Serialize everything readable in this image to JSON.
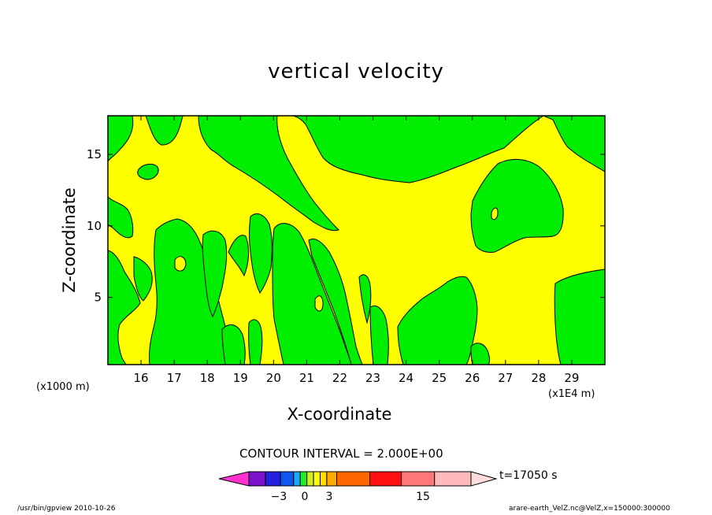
{
  "chart_data": {
    "type": "heatmap",
    "title": "vertical velocity",
    "xlabel": "X-coordinate",
    "ylabel": "Z-coordinate",
    "x_unit_note": "(x1000 m)",
    "x_scale_note": "(x1E4 m)",
    "x_ticks": [
      "16",
      "17",
      "18",
      "19",
      "20",
      "21",
      "22",
      "23",
      "24",
      "25",
      "26",
      "27",
      "28",
      "29"
    ],
    "y_ticks": [
      "5",
      "10",
      "15"
    ],
    "xlim": [
      15.0,
      30.0
    ],
    "ylim": [
      0.3,
      17.7
    ],
    "contour_interval_text": "CONTOUR INTERVAL = 2.000E+00",
    "time_text": "t=17050 s",
    "colorbar": {
      "labels": [
        {
          "value": -3,
          "text": "−3"
        },
        {
          "value": 0,
          "text": "0"
        },
        {
          "value": 3,
          "text": "3"
        },
        {
          "value": 15,
          "text": "15"
        }
      ],
      "colors": [
        "#ff33cc",
        "#7a11cc",
        "#2222dd",
        "#1155ee",
        "#19aaff",
        "#22ee22",
        "#ccee22",
        "#ffff00",
        "#ffdd00",
        "#ffaa00",
        "#ff6600",
        "#ff1111",
        "#ff7777",
        "#ffbbbb",
        "#ffdddd"
      ]
    },
    "fields": {
      "yellow_background": "#ffff00",
      "green_regions": "#00ee00"
    }
  },
  "footer": {
    "left": "/usr/bin/gpview   2010-10-26",
    "right": "arare-earth_VelZ.nc@VelZ,x=150000:300000"
  }
}
